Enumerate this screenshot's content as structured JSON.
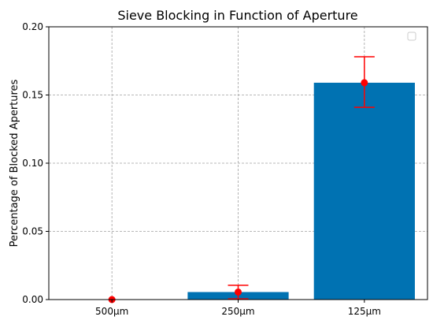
{
  "chart_data": {
    "type": "bar",
    "title": "Sieve Blocking in Function of Aperture",
    "xlabel": "",
    "ylabel": "Percentage of Blocked Apertures",
    "categories": [
      "500µm",
      "250µm",
      "125µm"
    ],
    "values": [
      0.0,
      0.0055,
      0.159
    ],
    "error_low": [
      0.0,
      0.0005,
      0.141
    ],
    "error_high": [
      0.0,
      0.0105,
      0.178
    ],
    "ylim": [
      0,
      0.2
    ],
    "yticks": [
      0.0,
      0.05,
      0.1,
      0.15,
      0.2
    ],
    "ytick_labels": [
      "0.00",
      "0.05",
      "0.10",
      "0.15",
      "0.20"
    ],
    "grid": true,
    "legend": "top-right, empty",
    "colors": {
      "bar": "#0072b2",
      "point": "#ff0000",
      "error_bar": "#ff0000",
      "grid": "#a0a0a0"
    }
  }
}
